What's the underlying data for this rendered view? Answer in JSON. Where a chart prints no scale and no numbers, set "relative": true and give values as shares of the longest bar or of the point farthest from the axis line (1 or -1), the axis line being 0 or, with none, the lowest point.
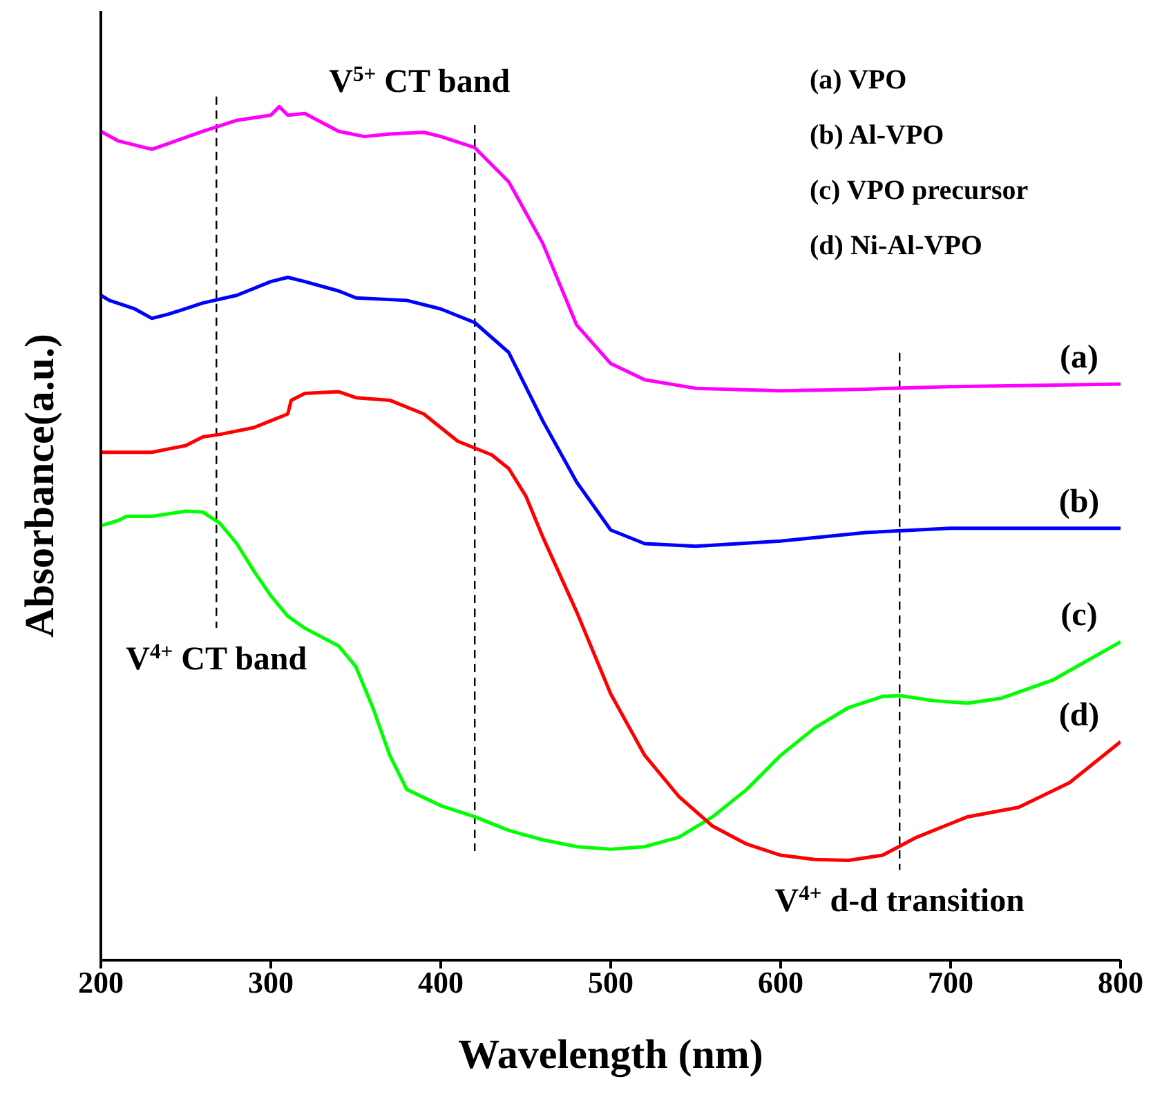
{
  "chart_data": {
    "type": "line",
    "relative": true,
    "xlabel": "Wavelength (nm)",
    "ylabel": "Absorbance(a.u.)",
    "xlim": [
      200,
      800
    ],
    "xticks": [
      200,
      300,
      400,
      500,
      600,
      700,
      800
    ],
    "grid": false,
    "legend": false,
    "marker": "none",
    "line_style": "solid",
    "annotations": [
      "(a) VPO",
      "(b) Al-VPO",
      "(c) VPO precursor",
      "(d) Ni-Al-VPO"
    ],
    "ref_lines": [
      {
        "axis": "x",
        "value": 268,
        "label": "V$^{4+}$ CT band",
        "color": "#000000",
        "line_style": "dashed"
      },
      {
        "axis": "x",
        "value": 420,
        "label": "V$^{5+}$ CT band",
        "color": "#000000",
        "line_style": "dashed"
      },
      {
        "axis": "x",
        "value": 670,
        "label": "V$^{4+}$ d-d transition",
        "color": "#000000",
        "line_style": "dashed"
      }
    ],
    "series": [
      {
        "name": "(a)",
        "color": "#ff00ff",
        "x": [
          200,
          210,
          230,
          240,
          260,
          280,
          300,
          305,
          310,
          320,
          340,
          355,
          370,
          390,
          400,
          420,
          440,
          460,
          470,
          480,
          500,
          520,
          550,
          600,
          650,
          700,
          800
        ],
        "values": [
          0.971,
          0.96,
          0.95,
          0.957,
          0.971,
          0.984,
          0.99,
          1.0,
          0.99,
          0.992,
          0.971,
          0.965,
          0.968,
          0.97,
          0.965,
          0.952,
          0.912,
          0.84,
          0.792,
          0.744,
          0.699,
          0.68,
          0.67,
          0.667,
          0.669,
          0.672,
          0.675
        ]
      },
      {
        "name": "(b)",
        "color": "#0000ff",
        "x": [
          200,
          205,
          220,
          230,
          240,
          260,
          280,
          300,
          310,
          320,
          340,
          350,
          380,
          400,
          420,
          440,
          460,
          480,
          500,
          520,
          550,
          600,
          650,
          700,
          800
        ],
        "values": [
          0.779,
          0.773,
          0.763,
          0.752,
          0.757,
          0.77,
          0.779,
          0.795,
          0.8,
          0.795,
          0.784,
          0.776,
          0.773,
          0.763,
          0.747,
          0.712,
          0.632,
          0.56,
          0.504,
          0.488,
          0.485,
          0.491,
          0.501,
          0.506,
          0.506
        ]
      },
      {
        "name": "(c)",
        "color": "#00ff00",
        "x": [
          200,
          210,
          215,
          230,
          250,
          260,
          270,
          280,
          290,
          300,
          310,
          320,
          340,
          350,
          360,
          370,
          380,
          400,
          420,
          440,
          460,
          480,
          500,
          520,
          540,
          560,
          580,
          600,
          620,
          640,
          660,
          670,
          690,
          710,
          730,
          760,
          800
        ],
        "values": [
          0.509,
          0.515,
          0.52,
          0.52,
          0.526,
          0.525,
          0.512,
          0.488,
          0.456,
          0.427,
          0.403,
          0.389,
          0.368,
          0.344,
          0.296,
          0.24,
          0.2,
          0.181,
          0.168,
          0.152,
          0.141,
          0.133,
          0.13,
          0.133,
          0.144,
          0.168,
          0.2,
          0.24,
          0.272,
          0.296,
          0.309,
          0.31,
          0.304,
          0.301,
          0.307,
          0.328,
          0.373
        ]
      },
      {
        "name": "(d)",
        "color": "#ff0000",
        "x": [
          200,
          210,
          230,
          250,
          260,
          270,
          290,
          300,
          310,
          312,
          320,
          340,
          350,
          370,
          390,
          400,
          410,
          430,
          440,
          450,
          460,
          480,
          500,
          520,
          540,
          560,
          580,
          600,
          620,
          640,
          660,
          680,
          700,
          710,
          740,
          770,
          800
        ],
        "values": [
          0.595,
          0.595,
          0.595,
          0.603,
          0.613,
          0.616,
          0.624,
          0.632,
          0.64,
          0.656,
          0.664,
          0.666,
          0.659,
          0.656,
          0.64,
          0.624,
          0.608,
          0.592,
          0.576,
          0.544,
          0.496,
          0.408,
          0.312,
          0.24,
          0.192,
          0.157,
          0.136,
          0.123,
          0.118,
          0.117,
          0.123,
          0.144,
          0.16,
          0.168,
          0.179,
          0.208,
          0.256
        ]
      }
    ]
  }
}
